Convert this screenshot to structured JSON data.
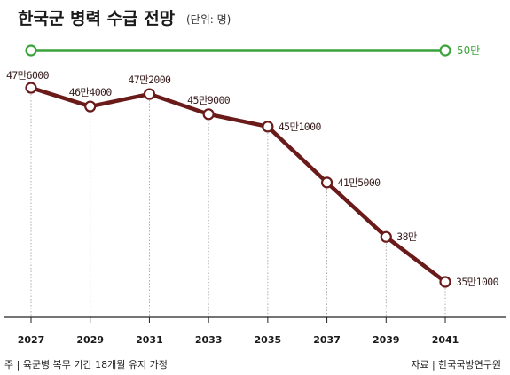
{
  "chart_data": {
    "type": "line",
    "title": "한국군 병력 수급 전망",
    "unit_note": "(단위: 명)",
    "categories": [
      "2027",
      "2029",
      "2031",
      "2033",
      "2035",
      "2037",
      "2039",
      "2041"
    ],
    "values": [
      476000,
      464000,
      472000,
      459000,
      451000,
      415000,
      380000,
      351000
    ],
    "value_labels": [
      "47만6000",
      "46만4000",
      "47만2000",
      "45만9000",
      "45만1000",
      "41만5000",
      "38만",
      "35만1000"
    ],
    "reference_line": {
      "value": 500000,
      "label": "50만",
      "color": "#3aa43a"
    },
    "ylim": [
      330000,
      510000
    ],
    "line_color": "#6b1a1a",
    "grid": false,
    "footnote_left": "주 | 육군병 복무 기간 18개월 유지 가정",
    "footnote_right": "자료 | 한국국방연구원"
  }
}
